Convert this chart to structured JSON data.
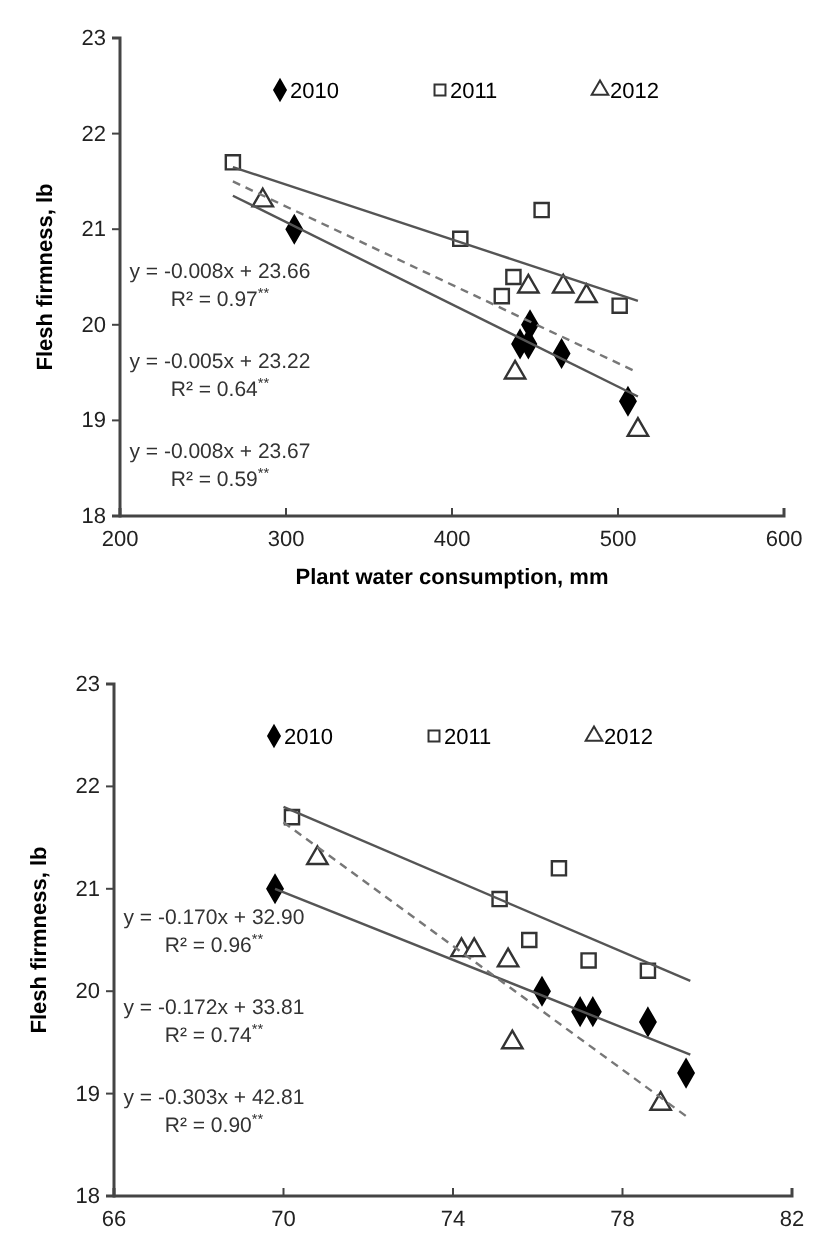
{
  "chart_data": [
    {
      "type": "scatter",
      "xlabel": "Plant water consumption, mm",
      "ylabel": "Flesh firmness, lb",
      "xlim": [
        200,
        600
      ],
      "xticks": [
        200,
        300,
        400,
        500,
        600
      ],
      "ylim": [
        18,
        23
      ],
      "yticks": [
        18,
        19,
        20,
        21,
        22,
        23
      ],
      "grid": false,
      "legend": "top",
      "series": [
        {
          "name": "2010",
          "color": "#000000",
          "marker": "diamond",
          "x": [
            305,
            447,
            441,
            446,
            466,
            506
          ],
          "values": [
            21.0,
            20.0,
            19.8,
            19.8,
            19.7,
            19.2
          ]
        },
        {
          "name": "2011",
          "color": "#333333",
          "marker": "square",
          "x": [
            268,
            405,
            454,
            437,
            430,
            501
          ],
          "values": [
            21.7,
            20.9,
            21.2,
            20.5,
            20.3,
            20.2
          ]
        },
        {
          "name": "2012",
          "color": "#333333",
          "marker": "triangle",
          "x": [
            286,
            438,
            446,
            467,
            481,
            512
          ],
          "values": [
            21.3,
            19.5,
            20.4,
            20.4,
            20.3,
            18.9
          ]
        },
        {
          "type": "line",
          "color": "#555555",
          "line_style": "solid",
          "x": [
            268,
            512
          ],
          "values": [
            21.65,
            20.25
          ]
        },
        {
          "type": "line",
          "color": "#555555",
          "line_style": "solid",
          "x": [
            268,
            512
          ],
          "values": [
            21.35,
            19.25
          ]
        },
        {
          "type": "line",
          "color": "#777777",
          "line_style": "dashed",
          "x": [
            268,
            512
          ],
          "values": [
            21.5,
            19.5
          ]
        }
      ],
      "annotations": [
        "y = -0.008x + 23.66\nR² = 0.97$^{**}$",
        "y = -0.005x + 23.22\nR² = 0.64$^{**}$",
        "y = -0.008x + 23.67\nR² = 0.59$^{**}$"
      ]
    },
    {
      "type": "scatter",
      "ylabel": "Flesh firmness, lb",
      "xlim": [
        66,
        82
      ],
      "xticks": [
        66,
        70,
        74,
        78,
        82
      ],
      "ylim": [
        18,
        23
      ],
      "yticks": [
        18,
        19,
        20,
        21,
        22,
        23
      ],
      "grid": false,
      "legend": "top",
      "series": [
        {
          "name": "2010",
          "color": "#000000",
          "marker": "diamond",
          "x": [
            69.8,
            76.1,
            77.0,
            77.3,
            78.6,
            79.5
          ],
          "values": [
            21.0,
            20.0,
            19.8,
            19.8,
            19.7,
            19.2
          ]
        },
        {
          "name": "2011",
          "color": "#333333",
          "marker": "square",
          "x": [
            70.2,
            75.1,
            76.5,
            75.8,
            77.2,
            78.6
          ],
          "values": [
            21.7,
            20.9,
            21.2,
            20.5,
            20.3,
            20.2
          ]
        },
        {
          "name": "2012",
          "color": "#333333",
          "marker": "triangle",
          "x": [
            70.8,
            74.2,
            74.5,
            75.3,
            75.4,
            78.9
          ],
          "values": [
            21.3,
            20.4,
            20.4,
            20.3,
            19.5,
            18.9
          ]
        },
        {
          "type": "line",
          "color": "#555555",
          "line_style": "solid",
          "x": [
            70,
            79.6
          ],
          "values": [
            21.8,
            20.1
          ]
        },
        {
          "type": "line",
          "color": "#555555",
          "line_style": "solid",
          "x": [
            69.8,
            79.6
          ],
          "values": [
            21.0,
            19.38
          ]
        },
        {
          "type": "line",
          "color": "#777777",
          "line_style": "dashed",
          "x": [
            70,
            79.6
          ],
          "values": [
            21.65,
            18.75
          ]
        }
      ],
      "annotations": [
        "y = -0.170x + 32.90\nR² = 0.96$^{**}$",
        "y = -0.172x + 33.81\nR² = 0.74$^{**}$",
        "y = -0.303x + 42.81\nR² = 0.90$^{**}$"
      ]
    }
  ]
}
